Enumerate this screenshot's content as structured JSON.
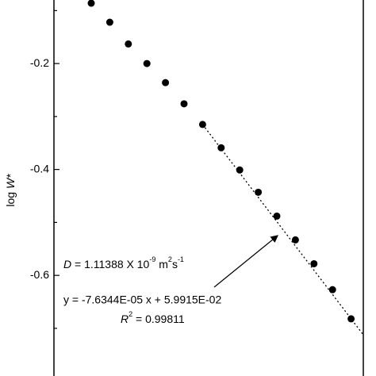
{
  "chart_data": {
    "type": "scatter",
    "y_label": [
      "log ",
      "W*"
    ],
    "categories": [
      null,
      null,
      null,
      null,
      null,
      null,
      null,
      null,
      null,
      null,
      null,
      null,
      null,
      null,
      null
    ],
    "values": [
      -0.086,
      -0.122,
      -0.163,
      -0.2,
      -0.236,
      -0.276,
      -0.315,
      -0.359,
      -0.401,
      -0.443,
      -0.488,
      -0.533,
      -0.578,
      -0.627,
      -0.682
    ],
    "color": "#000000",
    "ylim": [
      -0.79,
      -0.08
    ],
    "yticks": [
      -0.2,
      -0.4,
      -0.6
    ],
    "minor_yticks": [
      -0.1,
      -0.3,
      -0.5,
      -0.7
    ],
    "annotation_d": [
      "D",
      " = 1.11388 X 10",
      "-9",
      " m",
      "2",
      "s",
      "-1"
    ],
    "annotation_fit": "y = -7.6344E-05 x + 5.9915E-02",
    "annotation_r2": [
      "R",
      "2",
      " = 0.99811"
    ]
  }
}
